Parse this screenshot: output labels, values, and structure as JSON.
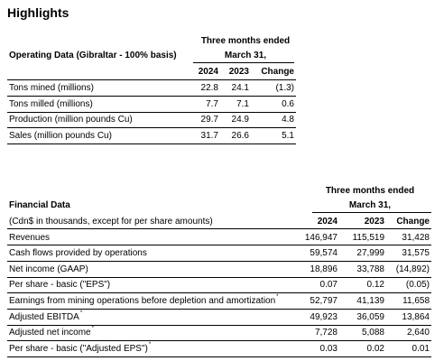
{
  "title": "Highlights",
  "operating": {
    "label": "Operating Data (Gibraltar - 100% basis)",
    "period_line1": "Three months ended",
    "period_line2": "March 31,",
    "col_2024": "2024",
    "col_2023": "2023",
    "col_change": "Change",
    "rows": [
      {
        "label": "Tons mined (millions)",
        "v2024": "22.8",
        "v2023": "24.1",
        "change": "(1.3)"
      },
      {
        "label": "Tons milled (millions)",
        "v2024": "7.7",
        "v2023": "7.1",
        "change": "0.6"
      },
      {
        "label": "Production (million pounds Cu)",
        "v2024": "29.7",
        "v2023": "24.9",
        "change": "4.8"
      },
      {
        "label": "Sales (million pounds Cu)",
        "v2024": "31.7",
        "v2023": "26.6",
        "change": "5.1"
      }
    ]
  },
  "financial": {
    "label": "Financial Data",
    "sublabel": "(Cdn$ in thousands, except for per share amounts)",
    "period_line1": "Three months ended",
    "period_line2": "March 31,",
    "col_2024": "2024",
    "col_2023": "2023",
    "col_change": "Change",
    "rows": [
      {
        "label": "Revenues",
        "note": "",
        "v2024": "146,947",
        "v2023": "115,519",
        "change": "31,428"
      },
      {
        "label": "Cash flows provided by operations",
        "note": "",
        "v2024": "59,574",
        "v2023": "27,999",
        "change": "31,575"
      },
      {
        "label": "Net income (GAAP)",
        "note": "",
        "v2024": "18,896",
        "v2023": "33,788",
        "change": "(14,892)"
      },
      {
        "label": "Per share - basic (\"EPS\")",
        "note": "",
        "v2024": "0.07",
        "v2023": "0.12",
        "change": "(0.05)"
      },
      {
        "label": "Earnings from mining operations before depletion and amortization",
        "note": "*",
        "v2024": "52,797",
        "v2023": "41,139",
        "change": "11,658"
      },
      {
        "label": "Adjusted EBITDA",
        "note": "*",
        "v2024": "49,923",
        "v2023": "36,059",
        "change": "13,864"
      },
      {
        "label": "Adjusted net income",
        "note": "*",
        "v2024": "7,728",
        "v2023": "5,088",
        "change": "2,640"
      },
      {
        "label": "Per share - basic (\"Adjusted EPS\")",
        "note": "*",
        "v2024": "0.03",
        "v2023": "0.02",
        "change": "0.01"
      }
    ]
  }
}
